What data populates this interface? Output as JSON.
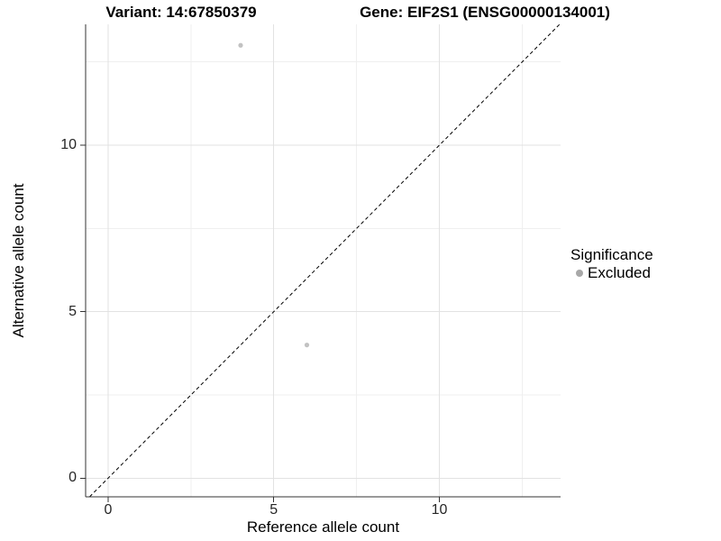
{
  "titles": {
    "variant": "Variant: 14:67850379",
    "gene": "Gene: EIF2S1 (ENSG00000134001)"
  },
  "axes": {
    "x_label": "Reference allele count",
    "y_label": "Alternative allele count"
  },
  "legend": {
    "title": "Significance",
    "entries": [
      {
        "label": "Excluded",
        "color": "#a8a8a8"
      }
    ]
  },
  "chart_data": {
    "type": "scatter",
    "title": "Variant: 14:67850379 | Gene: EIF2S1 (ENSG00000134001)",
    "xlabel": "Reference allele count",
    "ylabel": "Alternative allele count",
    "series": [
      {
        "name": "Excluded",
        "color": "#c2c2c2",
        "points": [
          [
            4,
            13
          ],
          [
            6,
            4
          ]
        ]
      }
    ],
    "reference_line": {
      "kind": "identity y=x",
      "style": "dashed",
      "color": "#000000"
    },
    "xlim": [
      -0.68,
      13.66
    ],
    "ylim": [
      -0.56,
      13.63
    ],
    "x_ticks": [
      0,
      5,
      10
    ],
    "y_ticks": [
      0,
      5,
      10
    ],
    "x_minor_ticks": [
      2.5,
      7.5,
      12.5
    ],
    "y_minor_ticks": [
      2.5,
      7.5,
      12.5
    ],
    "grid": "major+minor",
    "legend_position": "right"
  },
  "style": {
    "background": "#ffffff",
    "axis_line": "#333333",
    "grid_major": "#e2e2e2",
    "grid_minor": "#efefef",
    "tick_mark": "#333333",
    "tick_text": "#262626",
    "point_radius": 2.6,
    "ref_dash": "4 3"
  }
}
